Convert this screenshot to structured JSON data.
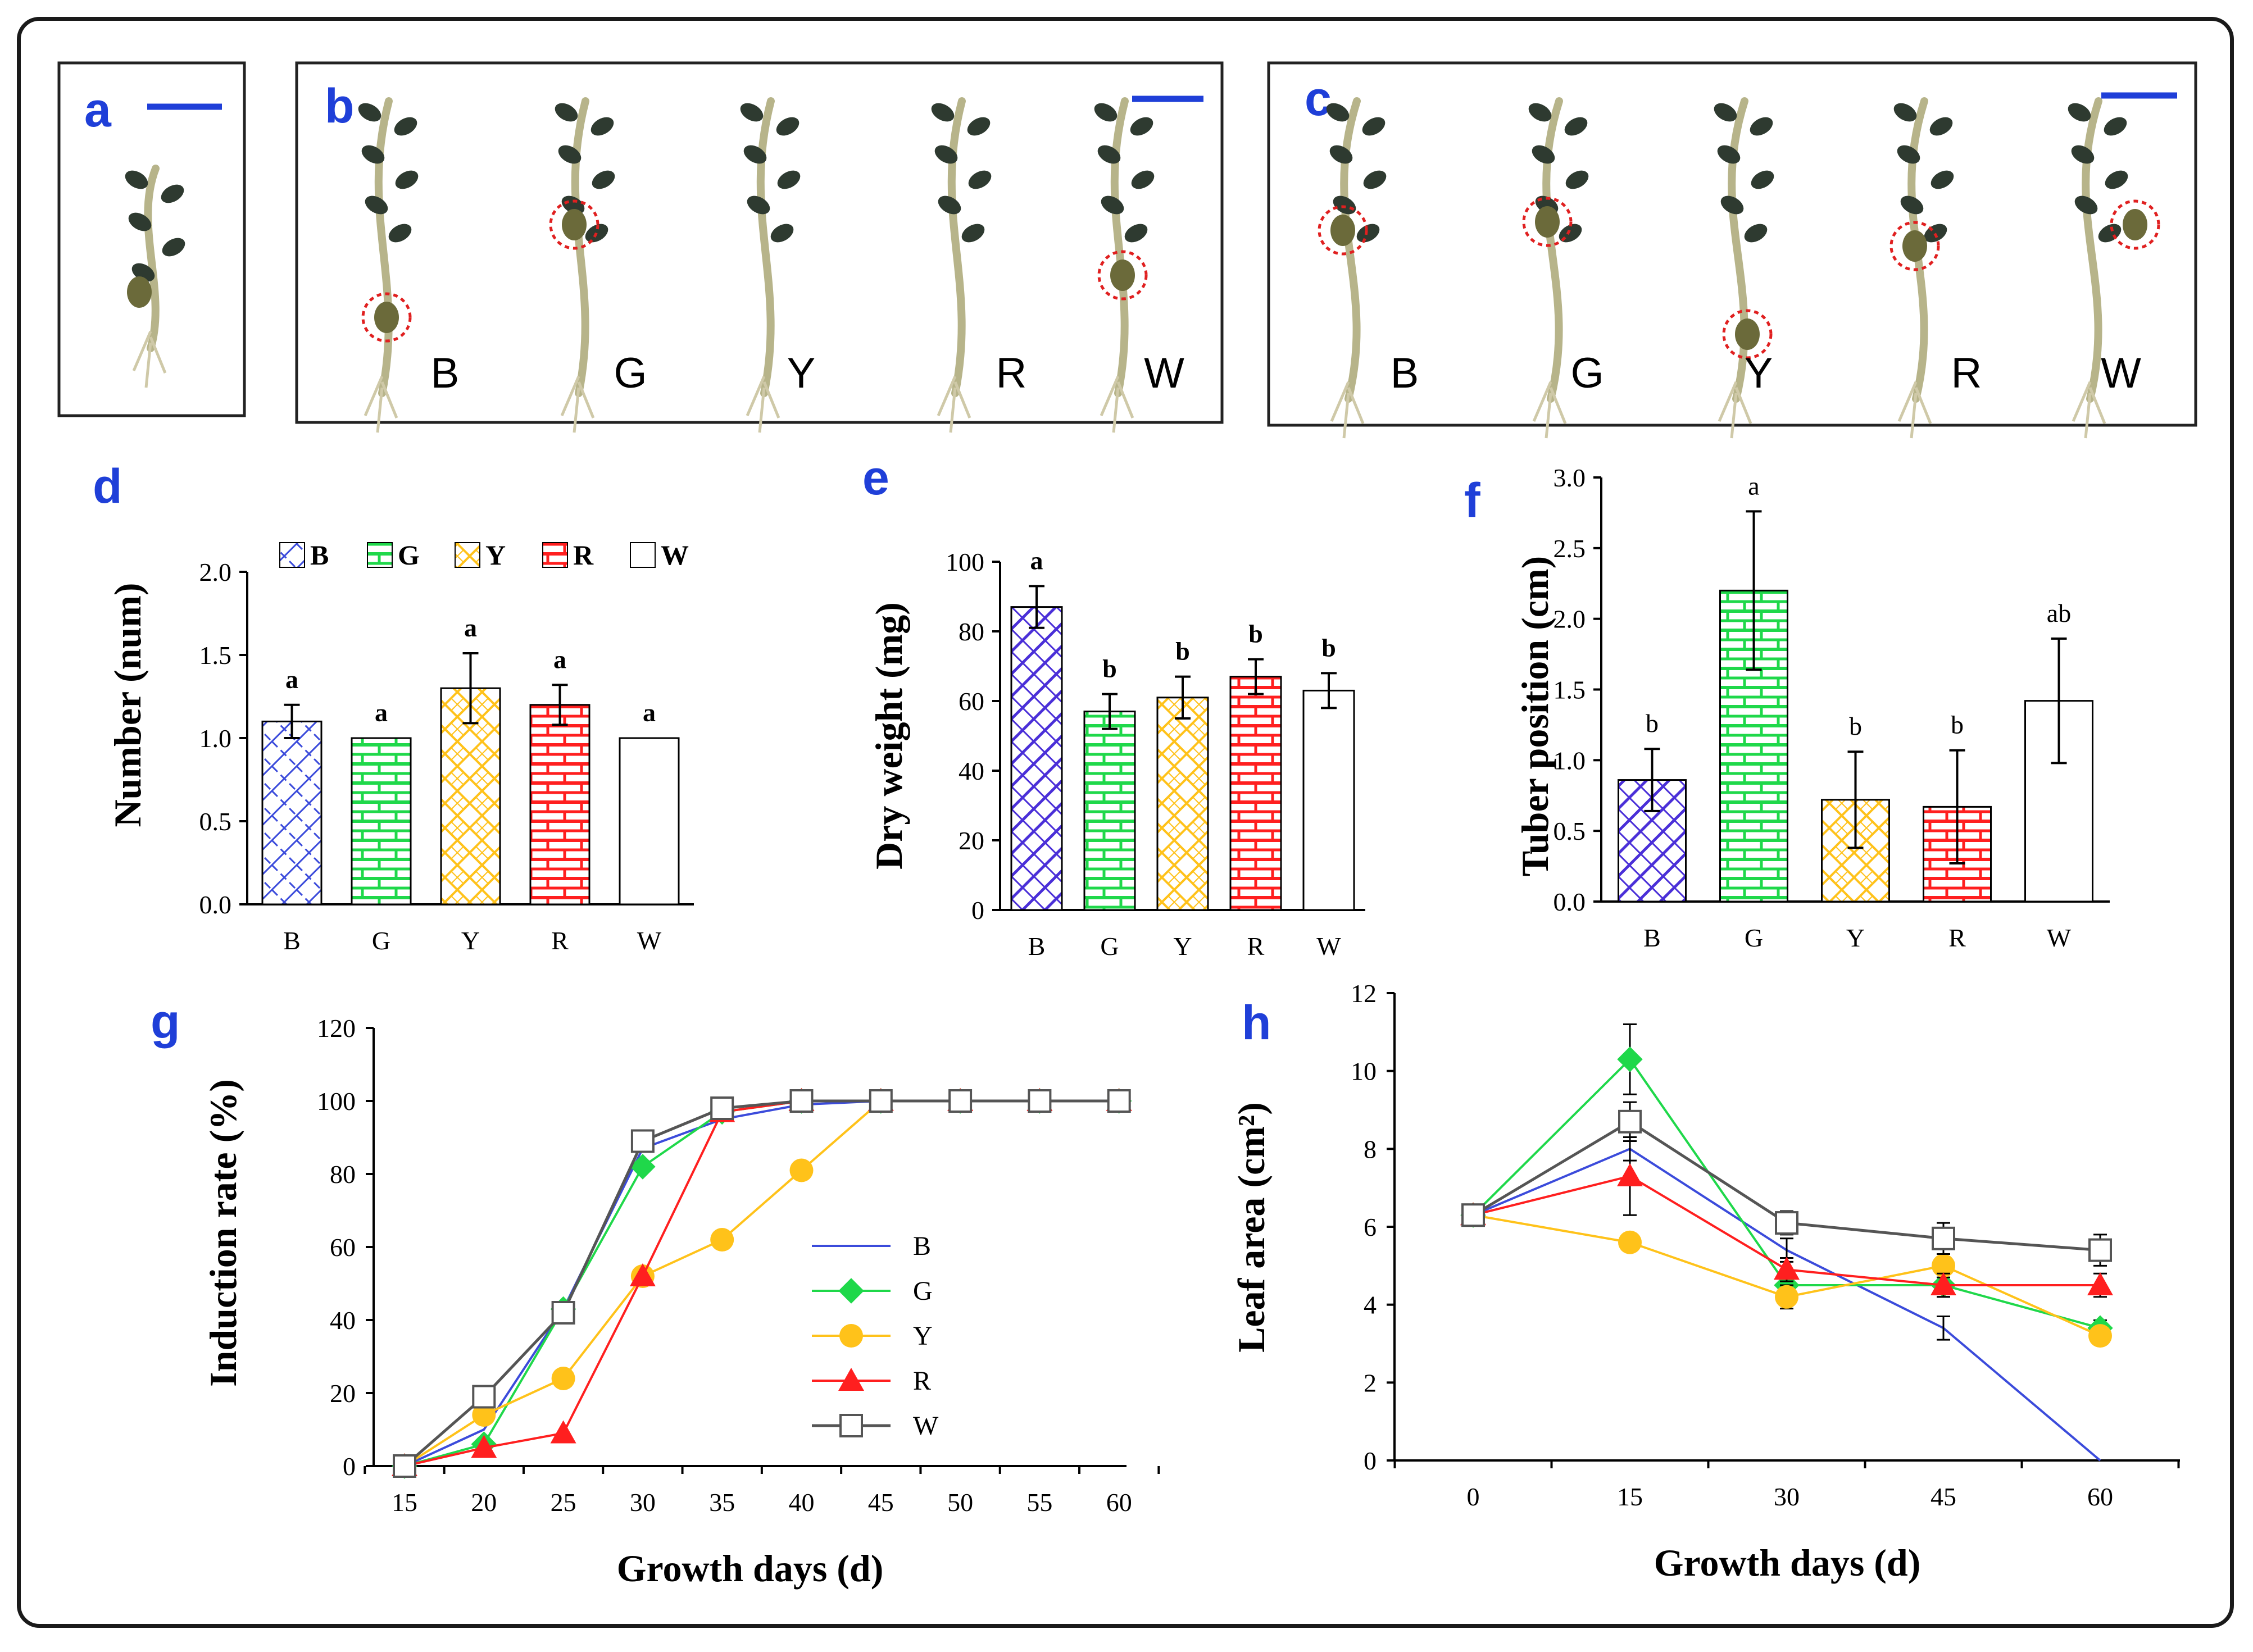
{
  "panels": {
    "a": {
      "label": "a"
    },
    "b": {
      "label": "b",
      "treatments": [
        "B",
        "G",
        "Y",
        "R",
        "W"
      ]
    },
    "c": {
      "label": "c",
      "treatments": [
        "B",
        "G",
        "Y",
        "R",
        "W"
      ]
    },
    "d": {
      "label": "d"
    },
    "e": {
      "label": "e"
    },
    "f": {
      "label": "f"
    },
    "g": {
      "label": "g"
    },
    "h": {
      "label": "h"
    }
  },
  "colors": {
    "B": "#3b4bdb",
    "G": "#1fd84a",
    "Y": "#ffc21a",
    "R": "#ff1f1f",
    "W": "#555555",
    "panel_label": "#1f3fd8",
    "scale_bar": "#1f3fd8",
    "tuber_circle": "#e02020"
  },
  "chart_data": [
    {
      "id": "d",
      "type": "bar",
      "categories": [
        "B",
        "G",
        "Y",
        "R",
        "W"
      ],
      "values": [
        1.1,
        1.0,
        1.3,
        1.2,
        1.0
      ],
      "errors": [
        0.1,
        0.0,
        0.21,
        0.12,
        0.0
      ],
      "significance": [
        "a",
        "a",
        "a",
        "a",
        "a"
      ],
      "xlabel": "",
      "ylabel": "Number (num)",
      "ylim": [
        0.0,
        2.0
      ],
      "yticks": [
        "0.0",
        "0.5",
        "1.0",
        "1.5",
        "2.0"
      ],
      "legend": [
        "B",
        "G",
        "Y",
        "R",
        "W"
      ],
      "legend_position": "top"
    },
    {
      "id": "e",
      "type": "bar",
      "categories": [
        "B",
        "G",
        "Y",
        "R",
        "W"
      ],
      "values": [
        87,
        57,
        61,
        67,
        63
      ],
      "errors": [
        6,
        5,
        6,
        5,
        5
      ],
      "significance": [
        "a",
        "b",
        "b",
        "b",
        "b"
      ],
      "xlabel": "",
      "ylabel": "Dry weight (mg)",
      "ylim": [
        0,
        100
      ],
      "yticks": [
        "0",
        "20",
        "40",
        "60",
        "80",
        "100"
      ]
    },
    {
      "id": "f",
      "type": "bar",
      "categories": [
        "B",
        "G",
        "Y",
        "R",
        "W"
      ],
      "values": [
        0.86,
        2.2,
        0.72,
        0.67,
        1.42
      ],
      "errors": [
        0.22,
        0.56,
        0.34,
        0.4,
        0.44
      ],
      "significance": [
        "b",
        "a",
        "b",
        "b",
        "ab"
      ],
      "xlabel": "",
      "ylabel": "Tuber position (cm)",
      "ylim": [
        0.0,
        3.0
      ],
      "yticks": [
        "0.0",
        "0.5",
        "1.0",
        "1.5",
        "2.0",
        "2.5",
        "3.0"
      ]
    },
    {
      "id": "g",
      "type": "line",
      "x": [
        15,
        20,
        25,
        30,
        35,
        40,
        45,
        50,
        55,
        60
      ],
      "xticks": [
        "15",
        "20",
        "25",
        "30",
        "35",
        "40",
        "45",
        "50",
        "55",
        "60"
      ],
      "series": [
        {
          "name": "B",
          "values": [
            0,
            10,
            43,
            87,
            95,
            99,
            100,
            100,
            100,
            100
          ]
        },
        {
          "name": "G",
          "values": [
            0,
            6,
            43,
            82,
            97,
            100,
            100,
            100,
            100,
            100
          ]
        },
        {
          "name": "Y",
          "values": [
            0,
            14,
            24,
            52,
            62,
            81,
            100,
            100,
            100,
            100
          ]
        },
        {
          "name": "R",
          "values": [
            0,
            5,
            9,
            52,
            97,
            100,
            100,
            100,
            100,
            100
          ]
        },
        {
          "name": "W",
          "values": [
            0,
            19,
            42,
            89,
            98,
            100,
            100,
            100,
            100,
            100
          ]
        }
      ],
      "xlabel": "Growth days (d)",
      "ylabel": "Induction rate (%)",
      "ylim": [
        0,
        120
      ],
      "yticks": [
        "0",
        "20",
        "40",
        "60",
        "80",
        "100",
        "120"
      ],
      "legend_position": "right"
    },
    {
      "id": "h",
      "type": "line",
      "x": [
        0,
        15,
        30,
        45,
        60
      ],
      "xticks": [
        "0",
        "15",
        "30",
        "45",
        "60"
      ],
      "series": [
        {
          "name": "B",
          "values": [
            6.3,
            8.0,
            5.4,
            3.4,
            0.0
          ],
          "errors": [
            0.15,
            0.3,
            0.3,
            0.3,
            0
          ]
        },
        {
          "name": "G",
          "values": [
            6.3,
            10.3,
            4.5,
            4.5,
            3.4
          ],
          "errors": [
            0.15,
            0.9,
            0.3,
            0.3,
            0.2
          ]
        },
        {
          "name": "Y",
          "values": [
            6.3,
            5.6,
            4.2,
            5.0,
            3.2
          ],
          "errors": [
            0.15,
            0.2,
            0.3,
            0.3,
            0.2
          ]
        },
        {
          "name": "R",
          "values": [
            6.3,
            7.3,
            4.9,
            4.5,
            4.5
          ],
          "errors": [
            0.15,
            1.0,
            0.3,
            0.3,
            0.3
          ]
        },
        {
          "name": "W",
          "values": [
            6.3,
            8.7,
            6.1,
            5.7,
            5.4
          ],
          "errors": [
            0.15,
            0.5,
            0.3,
            0.4,
            0.4
          ]
        }
      ],
      "xlabel": "Growth days (d)",
      "ylabel": "Leaf area (cm²)",
      "ylim": [
        0,
        12
      ],
      "yticks": [
        "0",
        "2",
        "4",
        "6",
        "8",
        "10",
        "12"
      ]
    }
  ]
}
